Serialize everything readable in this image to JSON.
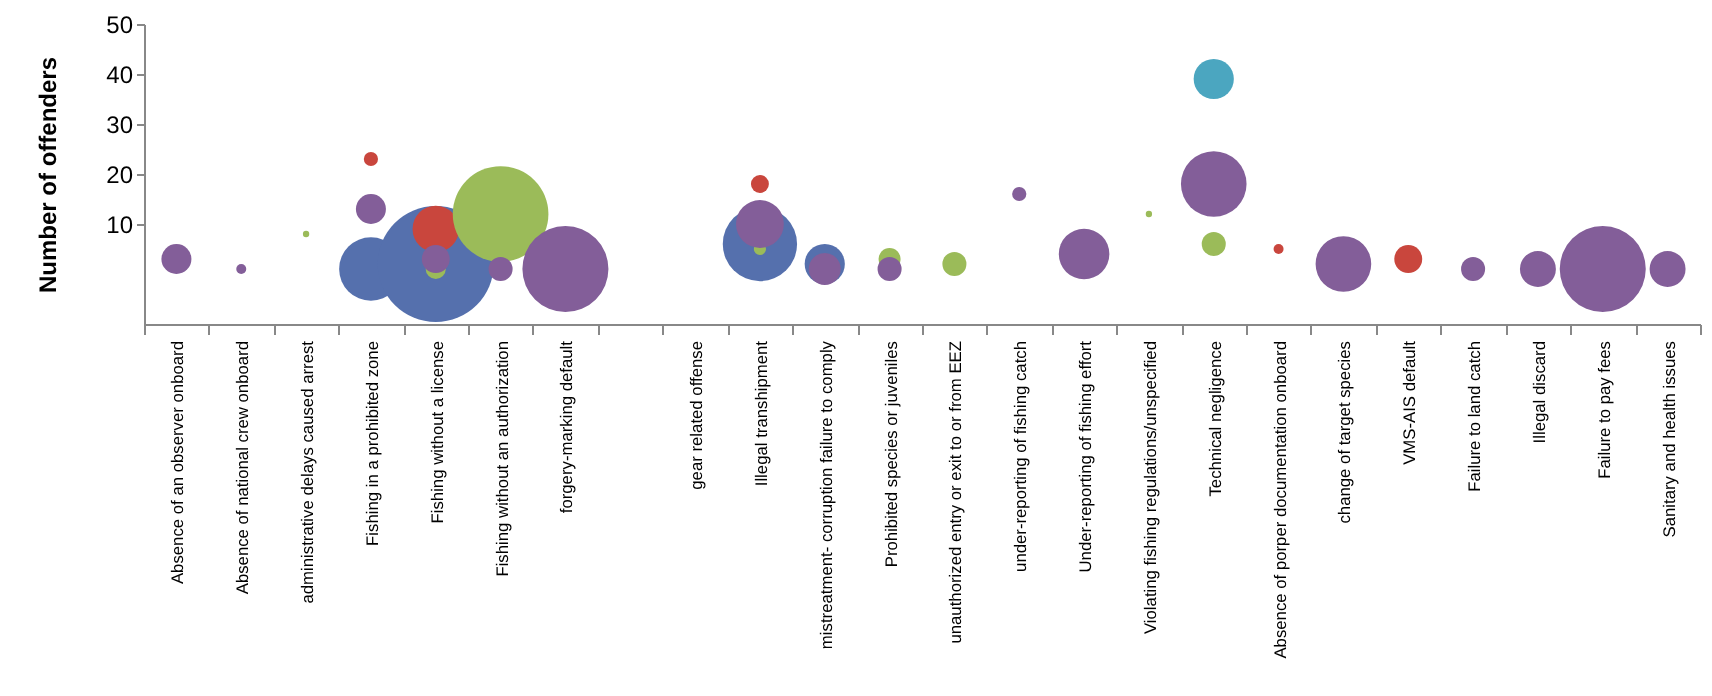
{
  "chart_data": {
    "type": "bubble",
    "ylabel": "Number of offenders",
    "categories": [
      "Absence of an observer onboard",
      "Absence of national crew onboard",
      "administrative delays caused arrest",
      "Fishing in a prohibited zone",
      "Fishing without a license",
      "Fishing without an authorization",
      "forgery-marking default",
      null,
      "gear related offense",
      "Illegal transhipment",
      "mistreatment- corruption failure to comply",
      "Prohibited species or juveniles",
      "unauthorized entry or exit to or from EEZ",
      "under-reporting of fishing catch",
      "Under-reporting of fishing effort",
      "Violating fishing regulations/unspecified",
      "Technical negligence",
      "Absence of porper documentation onboard",
      "change of target species",
      "VMS-AIS default",
      "Failure to land catch",
      "Illegal discard",
      "Failure to pay fees",
      "Sanitary and health issues"
    ],
    "ylim": [
      -10,
      50
    ],
    "yticks": [
      10,
      20,
      30,
      40,
      50
    ],
    "series": [
      {
        "color": "#5570ad",
        "values": [
          null,
          null,
          null,
          1,
          2,
          null,
          null,
          null,
          null,
          6,
          2,
          null,
          null,
          null,
          null,
          null,
          null,
          null,
          null,
          null,
          null,
          null,
          null,
          null
        ],
        "sizes": [
          null,
          null,
          null,
          0.3,
          1,
          null,
          null,
          null,
          null,
          0.41,
          0.12,
          null,
          null,
          null,
          null,
          null,
          null,
          null,
          null,
          null,
          null,
          null,
          null,
          null
        ]
      },
      {
        "color": "#c9463d",
        "values": [
          null,
          null,
          null,
          23,
          9,
          null,
          null,
          null,
          null,
          18,
          null,
          null,
          null,
          null,
          null,
          null,
          null,
          5,
          null,
          3,
          null,
          null,
          null,
          null
        ],
        "sizes": [
          null,
          null,
          null,
          0.015,
          0.16,
          null,
          null,
          null,
          null,
          0.024,
          null,
          null,
          null,
          null,
          null,
          null,
          null,
          0.0074,
          null,
          0.058,
          null,
          null,
          null,
          null
        ]
      },
      {
        "color": "#9bbb59",
        "values": [
          null,
          null,
          8,
          null,
          1,
          12,
          null,
          null,
          null,
          5,
          null,
          3,
          2,
          null,
          null,
          12,
          6,
          null,
          null,
          null,
          null,
          null,
          null,
          null
        ],
        "sizes": [
          null,
          null,
          0.003,
          null,
          0.03,
          0.68,
          null,
          null,
          null,
          0.011,
          null,
          0.036,
          0.043,
          null,
          null,
          0.003,
          0.043,
          null,
          null,
          null,
          null,
          null,
          null,
          null
        ]
      },
      {
        "color": "#835e99",
        "values": [
          3,
          1,
          null,
          13,
          3,
          1,
          1,
          null,
          null,
          10,
          1,
          1,
          null,
          16,
          4,
          null,
          18,
          null,
          2,
          null,
          1,
          1,
          1,
          1
        ],
        "sizes": [
          0.067,
          0.0074,
          null,
          0.067,
          0.058,
          0.043,
          0.55,
          null,
          null,
          0.17,
          0.076,
          0.043,
          null,
          0.015,
          0.19,
          null,
          0.32,
          null,
          0.23,
          null,
          0.043,
          0.096,
          0.55,
          0.096
        ]
      },
      {
        "color": "#4ba6c0",
        "values": [
          null,
          null,
          null,
          null,
          null,
          null,
          null,
          null,
          null,
          null,
          null,
          null,
          null,
          null,
          null,
          null,
          39,
          null,
          null,
          null,
          null,
          null,
          null,
          null
        ],
        "sizes": [
          null,
          null,
          null,
          null,
          null,
          null,
          null,
          null,
          null,
          null,
          null,
          null,
          null,
          null,
          null,
          null,
          0.12,
          null,
          null,
          null,
          null,
          null,
          null,
          null
        ]
      }
    ]
  }
}
